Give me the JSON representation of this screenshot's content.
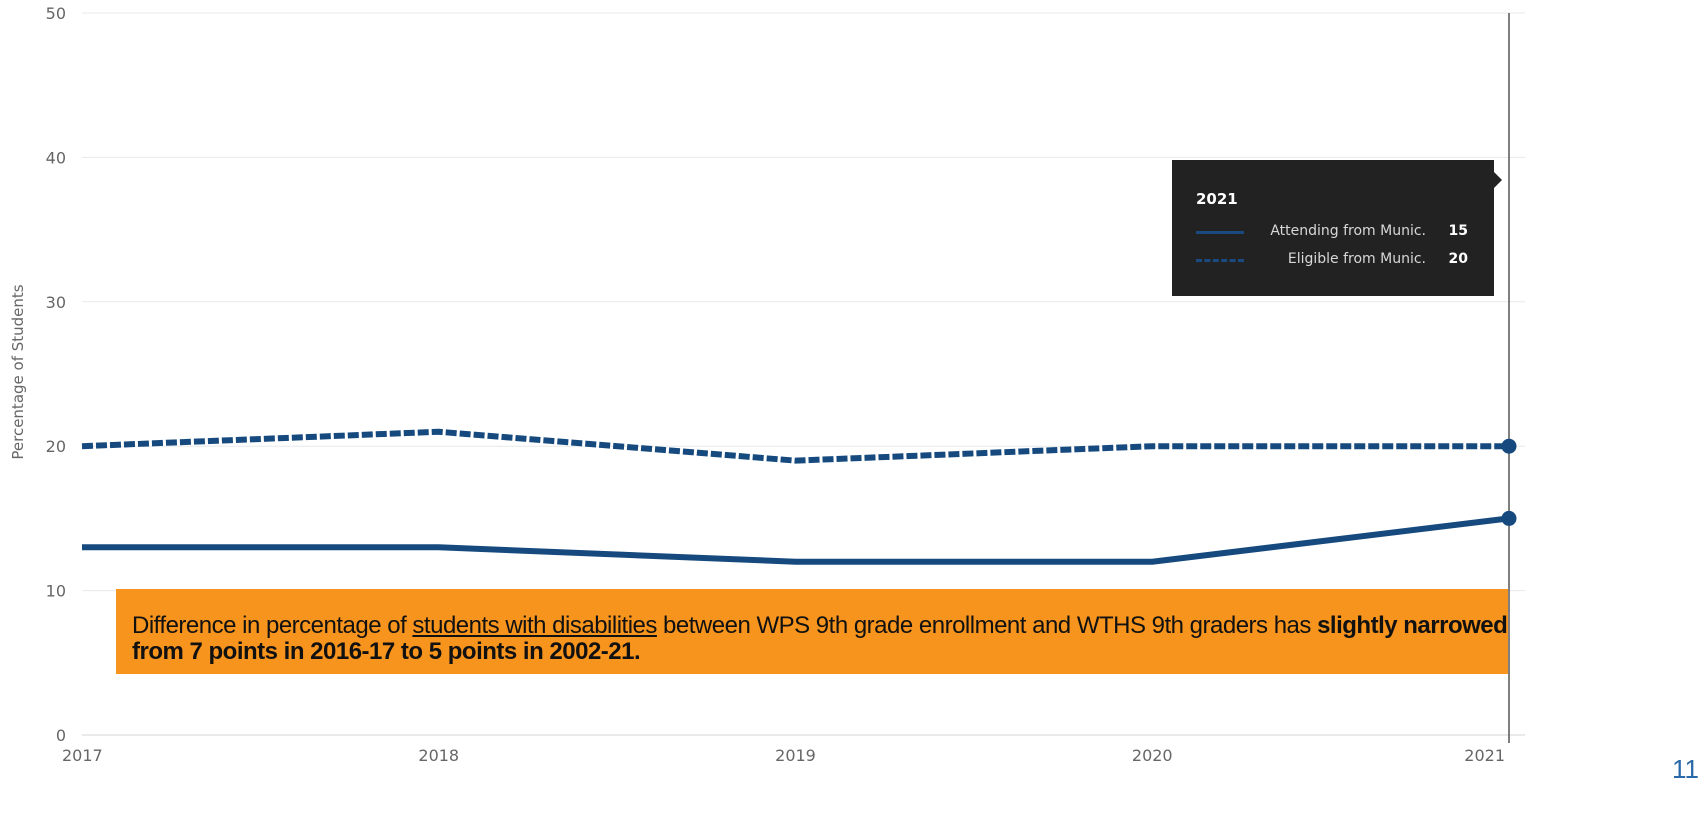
{
  "chart_data": {
    "type": "line",
    "ylabel": "Percentage of Students",
    "xlabel": "",
    "x": [
      "2017",
      "2018",
      "2019",
      "2020",
      "2021"
    ],
    "ylim": [
      0,
      50
    ],
    "yticks": [
      0,
      10,
      20,
      30,
      40,
      50
    ],
    "grid": true,
    "series": [
      {
        "name": "Attending from Munic.",
        "values": [
          13,
          13,
          12,
          12,
          15
        ],
        "style": "solid",
        "color": "#164a7e"
      },
      {
        "name": "Eligible from Munic.",
        "values": [
          20,
          21,
          19,
          20,
          20
        ],
        "style": "dashed",
        "color": "#164a7e"
      }
    ],
    "highlight_x": "2021"
  },
  "tooltip": {
    "year": "2021",
    "rows": [
      {
        "label": "Attending from Munic.",
        "value": "15"
      },
      {
        "label": "Eligible from Munic.",
        "value": "20"
      }
    ]
  },
  "callout": {
    "text_before": "Difference in percentage of ",
    "underlined": "students with disabilities",
    "text_middle": " between WPS 9th grade enrollment and WTHS 9th graders has ",
    "bold": "slightly narrowed from 7 points in 2016-17 to 5 points in 2002-21.",
    "background": "#f7941d"
  },
  "slide_number": "11"
}
